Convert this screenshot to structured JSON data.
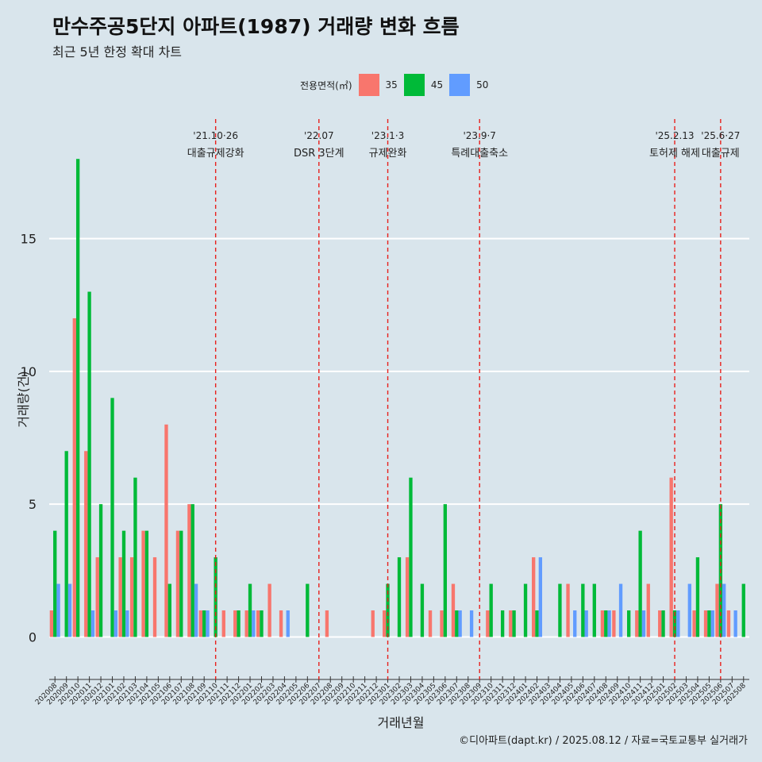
{
  "chart_data": {
    "type": "bar",
    "title": "만수주공5단지 아파트(1987) 거래량 변화 흐름",
    "subtitle": "최근 5년 한정 확대 차트",
    "xlabel": "거래년월",
    "ylabel": "거래량(건)",
    "caption": "©디아파트(dapt.kr) / 2025.08.12 / 자료=국토교통부 실거래가",
    "legend": {
      "title": "전용면적(㎡)",
      "position": "top",
      "items": [
        {
          "name": "35",
          "color": "#f8766d"
        },
        {
          "name": "45",
          "color": "#00ba38"
        },
        {
          "name": "50",
          "color": "#619cff"
        }
      ]
    },
    "ylim": [
      -1.6,
      19.8
    ],
    "yticks": [
      0,
      5,
      10,
      15
    ],
    "grid": true,
    "categories": [
      "202008",
      "202009",
      "202010",
      "202011",
      "202012",
      "202101",
      "202102",
      "202103",
      "202104",
      "202105",
      "202106",
      "202107",
      "202108",
      "202109",
      "202110",
      "202111",
      "202112",
      "202201",
      "202202",
      "202203",
      "202204",
      "202205",
      "202206",
      "202207",
      "202208",
      "202209",
      "202210",
      "202211",
      "202212",
      "202301",
      "202302",
      "202303",
      "202304",
      "202305",
      "202306",
      "202307",
      "202308",
      "202309",
      "202310",
      "202311",
      "202312",
      "202401",
      "202402",
      "202403",
      "202404",
      "202405",
      "202406",
      "202407",
      "202408",
      "202409",
      "202410",
      "202411",
      "202412",
      "202501",
      "202502",
      "202503",
      "202504",
      "202505",
      "202506",
      "202507",
      "202508"
    ],
    "series": [
      {
        "name": "35",
        "color": "#f8766d",
        "values": [
          1,
          0,
          12,
          7,
          3,
          0,
          3,
          3,
          4,
          3,
          8,
          4,
          5,
          1,
          0,
          1,
          1,
          1,
          1,
          2,
          1,
          0,
          0,
          0,
          1,
          0,
          0,
          0,
          1,
          1,
          0,
          3,
          0,
          1,
          1,
          2,
          0,
          0,
          1,
          0,
          1,
          0,
          3,
          0,
          0,
          2,
          0,
          0,
          1,
          1,
          0,
          1,
          2,
          1,
          6,
          0,
          1,
          1,
          2,
          1,
          0
        ]
      },
      {
        "name": "45",
        "color": "#00ba38",
        "values": [
          4,
          7,
          18,
          13,
          5,
          9,
          4,
          6,
          4,
          0,
          2,
          4,
          5,
          1,
          3,
          0,
          1,
          2,
          1,
          0,
          0,
          0,
          2,
          0,
          0,
          0,
          0,
          0,
          0,
          2,
          3,
          6,
          2,
          0,
          5,
          1,
          0,
          0,
          2,
          1,
          1,
          2,
          1,
          0,
          2,
          0,
          2,
          2,
          1,
          0,
          1,
          4,
          0,
          1,
          1,
          0,
          3,
          1,
          5,
          0,
          2
        ]
      },
      {
        "name": "50",
        "color": "#619cff",
        "values": [
          2,
          2,
          0,
          1,
          0,
          1,
          1,
          0,
          0,
          0,
          0,
          0,
          2,
          1,
          0,
          0,
          0,
          1,
          0,
          0,
          1,
          0,
          0,
          0,
          0,
          0,
          0,
          0,
          0,
          0,
          0,
          0,
          0,
          0,
          0,
          1,
          1,
          0,
          0,
          0,
          0,
          0,
          3,
          0,
          0,
          1,
          1,
          0,
          1,
          2,
          0,
          1,
          0,
          0,
          1,
          2,
          0,
          1,
          2,
          1,
          0
        ]
      }
    ],
    "events": [
      {
        "date": "202110",
        "label_top": "'21.10·26",
        "label_bottom": "대출규제강화"
      },
      {
        "date": "202207",
        "label_top": "'22.07",
        "label_bottom": "DSR 3단계"
      },
      {
        "date": "202301",
        "label_top": "'23.1·3",
        "label_bottom": "규제완화"
      },
      {
        "date": "202309",
        "label_top": "'23.9·7",
        "label_bottom": "특례대출축소"
      },
      {
        "date": "202502",
        "label_top": "'25.2.13",
        "label_bottom": "토허제 해제"
      },
      {
        "date": "202506",
        "label_top": "'25.6·27",
        "label_bottom": "대출규제"
      }
    ]
  }
}
